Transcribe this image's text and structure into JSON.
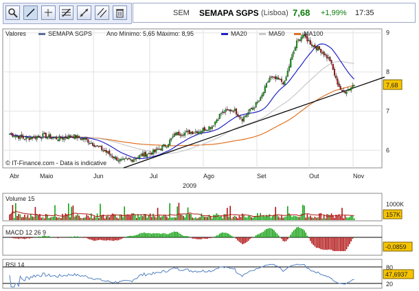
{
  "toolbar": {
    "buttons": [
      {
        "name": "zoom-tool-button",
        "icon": "magnifier-icon"
      },
      {
        "name": "line-tool-button",
        "icon": "diagonal-line-icon"
      },
      {
        "name": "crosshair-tool-button",
        "icon": "crosshair-icon"
      },
      {
        "name": "fibonacci-tool-button",
        "icon": "fibonacci-icon"
      },
      {
        "name": "expand-tool-button",
        "icon": "expand-arrows-icon"
      },
      {
        "name": "parallel-lines-button",
        "icon": "parallel-lines-icon"
      },
      {
        "name": "delete-button",
        "icon": "trash-icon"
      }
    ]
  },
  "header": {
    "symbol": "SEM",
    "name": "SEMAPA SGPS",
    "exchange": "(Lisboa)",
    "price": "7,68",
    "change": "+1,99%",
    "time": "17:35",
    "up_color": "#0a7a0a"
  },
  "chart_data": {
    "type": "candlestick",
    "legend": {
      "panel_label": "Valores",
      "series_label": "SEMAPA SGPS",
      "range_text": "Ano Mínimo: 5,65 Máximo: 8,95",
      "ma20": "MA20",
      "ma50": "MA50",
      "ma100": "MA100"
    },
    "colors": {
      "up": "#10a010",
      "down": "#b01010",
      "ma20": "#2020c8",
      "ma50": "#c8c8c8",
      "ma100": "#e07020",
      "trend": "#000000",
      "volume_avg": "#b01010",
      "rsi": "#5080c0"
    },
    "watermark": "© IT-Finance.com - Data is indicative",
    "ylim": [
      5.55,
      9.1
    ],
    "y_ticks": [
      "9",
      "8",
      "7",
      "6"
    ],
    "x_ticks": [
      "Abr",
      "Maio",
      "Jun",
      "Jul",
      "Ago",
      "Set",
      "Out",
      "Nov"
    ],
    "year_label": "2009",
    "last_value": "7,68",
    "ohlc_anchors": [
      [
        0,
        6.42
      ],
      [
        10,
        6.3
      ],
      [
        22,
        6.37
      ],
      [
        32,
        6.3
      ],
      [
        42,
        6.36
      ],
      [
        50,
        6.28
      ],
      [
        58,
        6.1
      ],
      [
        68,
        5.85
      ],
      [
        74,
        5.72
      ],
      [
        82,
        5.78
      ],
      [
        88,
        5.88
      ],
      [
        96,
        5.96
      ],
      [
        104,
        6.15
      ],
      [
        110,
        6.42
      ],
      [
        118,
        6.45
      ],
      [
        126,
        6.5
      ],
      [
        134,
        6.62
      ],
      [
        140,
        6.95
      ],
      [
        148,
        7.05
      ],
      [
        154,
        6.8
      ],
      [
        160,
        7.05
      ],
      [
        166,
        7.3
      ],
      [
        172,
        7.85
      ],
      [
        178,
        7.8
      ],
      [
        182,
        7.72
      ],
      [
        186,
        8.3
      ],
      [
        190,
        8.75
      ],
      [
        194,
        8.95
      ],
      [
        200,
        8.7
      ],
      [
        206,
        8.55
      ],
      [
        212,
        8.3
      ],
      [
        216,
        7.8
      ],
      [
        220,
        7.48
      ],
      [
        224,
        7.55
      ],
      [
        228,
        7.68
      ]
    ],
    "volume": {
      "label": "Volume 15",
      "tick": "1000K",
      "last_value": "157K",
      "ylim": [
        0,
        1250
      ]
    },
    "macd": {
      "label": "MACD 12 26 9",
      "last_value": "-0,0859"
    },
    "rsi": {
      "label": "RSI 14",
      "ticks": [
        "80",
        "20"
      ],
      "last_value": "47,6937"
    }
  }
}
